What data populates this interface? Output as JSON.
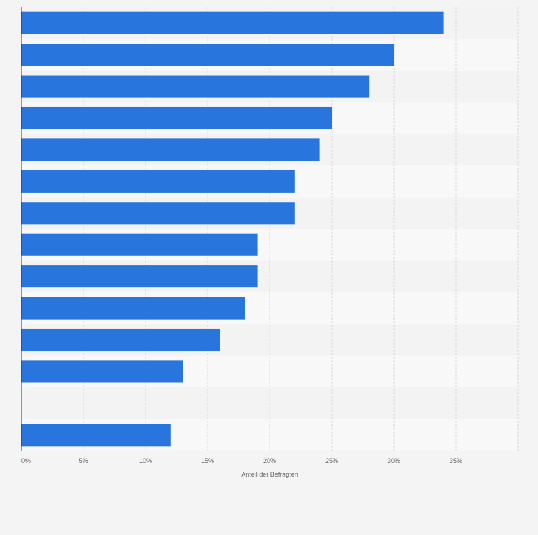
{
  "chart_data": {
    "type": "bar",
    "orientation": "horizontal",
    "categories": [
      "",
      "",
      "",
      "",
      "",
      "",
      "",
      "",
      "",
      "",
      "",
      "",
      "",
      ""
    ],
    "values": [
      34,
      30,
      28,
      25,
      24,
      22,
      22,
      19,
      19,
      18,
      16,
      13,
      null,
      12
    ],
    "xlabel": "Anteil der Befragten",
    "ylabel": "",
    "xlim": [
      0,
      40
    ],
    "xticks": [
      0,
      5,
      10,
      15,
      20,
      25,
      30,
      35
    ],
    "xtick_labels": [
      "0%",
      "5%",
      "10%",
      "15%",
      "20%",
      "25%",
      "30%",
      "35%"
    ],
    "grid": true,
    "colors": {
      "bar": "#2876dd",
      "background": "#f4f4f4",
      "plot_band_light": "#f8f8f8",
      "plot_band_dark": "#f3f3f3",
      "grid": "#d9d9d9",
      "axis": "#333333",
      "text": "#666666"
    }
  }
}
